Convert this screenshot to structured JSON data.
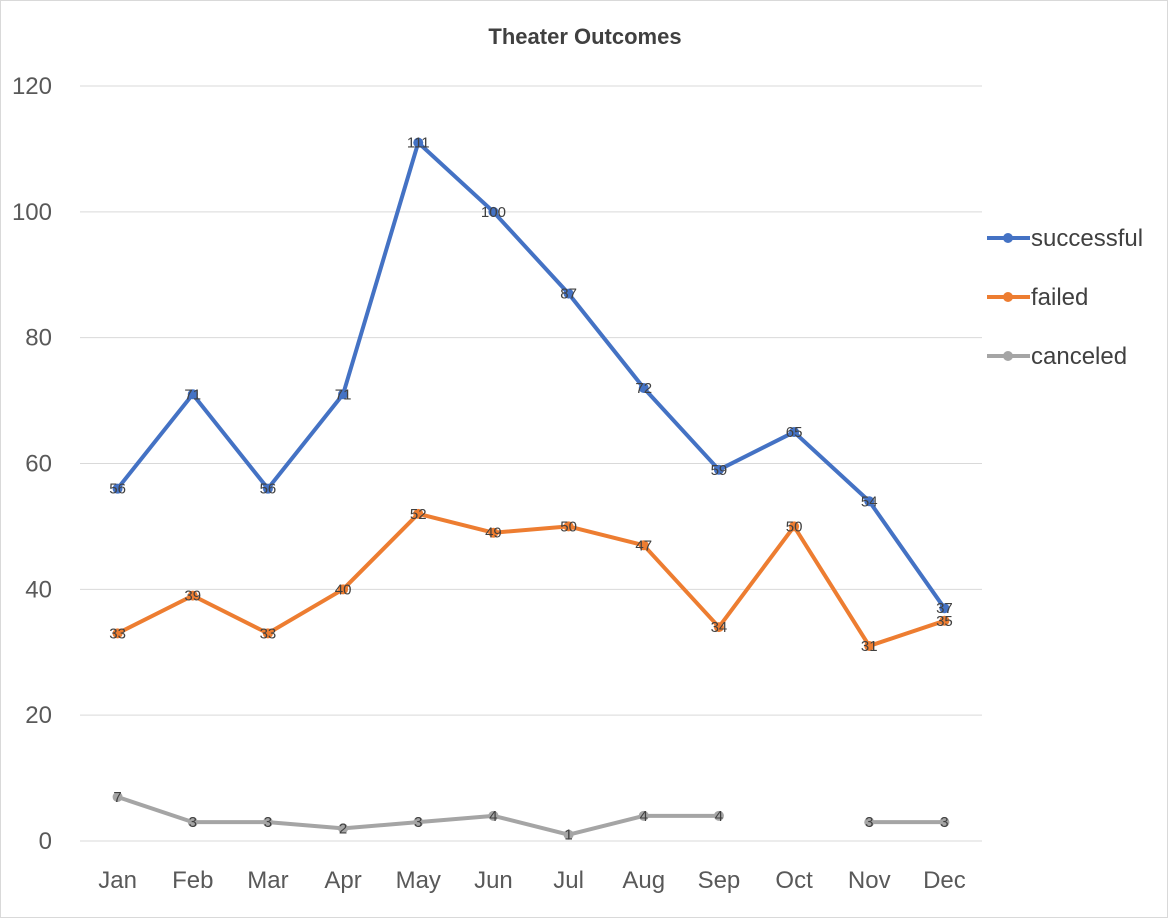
{
  "chart_data": {
    "type": "line",
    "title": "Theater Outcomes",
    "xlabel": "",
    "ylabel": "",
    "categories": [
      "Jan",
      "Feb",
      "Mar",
      "Apr",
      "May",
      "Jun",
      "Jul",
      "Aug",
      "Sep",
      "Oct",
      "Nov",
      "Dec"
    ],
    "ylim": [
      0,
      120
    ],
    "yticks": [
      0,
      20,
      40,
      60,
      80,
      100,
      120
    ],
    "grid": true,
    "legend": "right",
    "data_labels": true,
    "series": [
      {
        "name": "successful",
        "color": "#4472c4",
        "values": [
          56,
          71,
          56,
          71,
          111,
          100,
          87,
          72,
          59,
          65,
          54,
          37
        ]
      },
      {
        "name": "failed",
        "color": "#ed7d31",
        "values": [
          33,
          39,
          33,
          40,
          52,
          49,
          50,
          47,
          34,
          50,
          31,
          35
        ]
      },
      {
        "name": "canceled",
        "color": "#a5a5a5",
        "values": [
          7,
          3,
          3,
          2,
          3,
          4,
          1,
          4,
          4,
          null,
          3,
          3
        ]
      }
    ]
  }
}
